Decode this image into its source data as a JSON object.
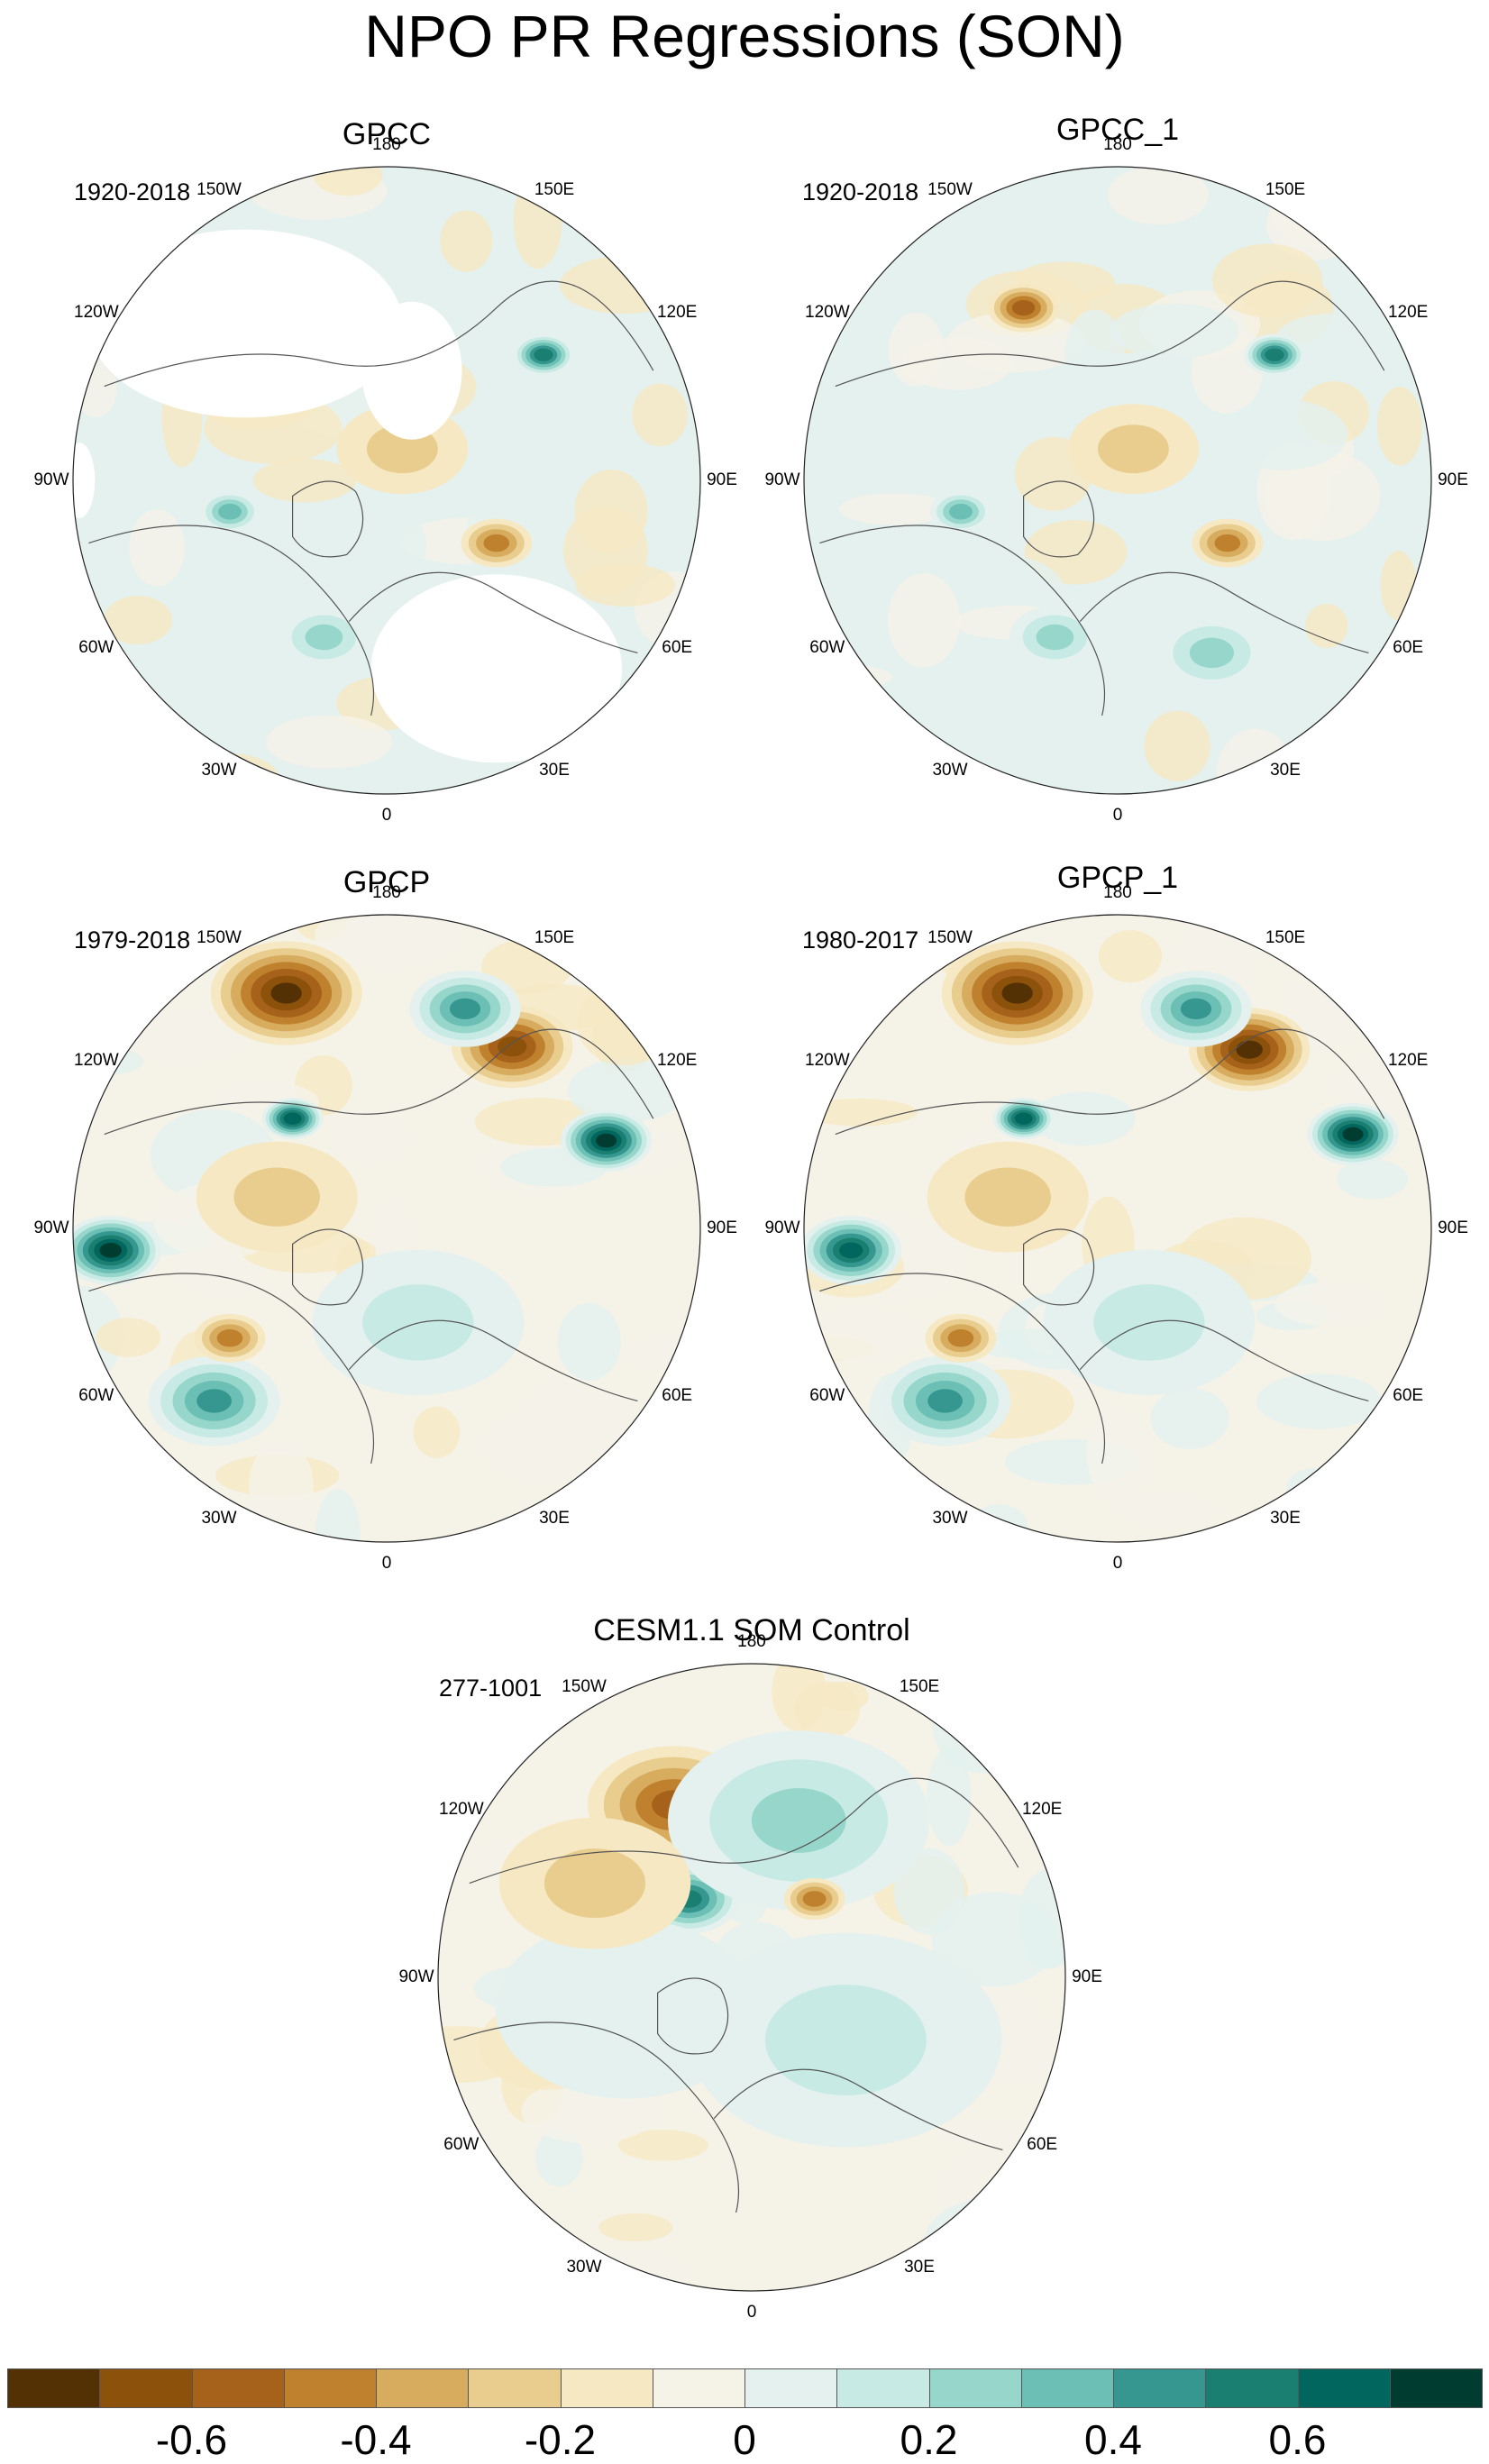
{
  "figure": {
    "title": "NPO PR Regressions (SON)"
  },
  "panels": [
    {
      "title": "GPCC",
      "period": "1920-2018"
    },
    {
      "title": "GPCC_1",
      "period": "1920-2018"
    },
    {
      "title": "GPCP",
      "period": "1979-2018"
    },
    {
      "title": "GPCP_1",
      "period": "1980-2017"
    },
    {
      "title": "CESM1.1 SOM Control",
      "period": "277-1001"
    }
  ],
  "longitude_labels": [
    "180",
    "150E",
    "120E",
    "90E",
    "60E",
    "30E",
    "0",
    "30W",
    "60W",
    "90W",
    "120W",
    "150W"
  ],
  "colorbar": {
    "colors": [
      "#543005",
      "#8c510a",
      "#a6611a",
      "#bf812d",
      "#d7ac5f",
      "#e8cd8f",
      "#f6e8c3",
      "#f5f2e8",
      "#e4f1ef",
      "#c7eae5",
      "#97d6cb",
      "#6bbfb4",
      "#35978f",
      "#1a7f70",
      "#01665e",
      "#003c30"
    ],
    "tick_labels": [
      "-0.6",
      "-0.4",
      "-0.2",
      "0",
      "0.2",
      "0.4",
      "0.6"
    ]
  }
}
